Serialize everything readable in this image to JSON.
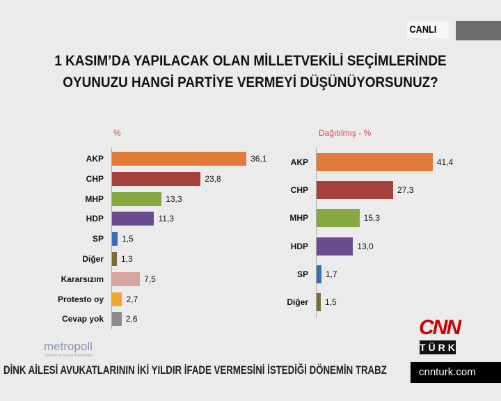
{
  "live_label": "CANLI",
  "title_lines": [
    "1 KASIM’DA YAPILACAK OLAN MİLLETVEKİLİ SEÇİMLERİNDE",
    "OYUNUZU HANGİ PARTİYE VERMEYİ DÜŞÜNÜYORSUNUZ?"
  ],
  "chart_data": [
    {
      "type": "bar",
      "orientation": "horizontal",
      "subtitle": "%",
      "categories": [
        "AKP",
        "CHP",
        "MHP",
        "HDP",
        "SP",
        "Diğer",
        "Kararsızım",
        "Protesto oy",
        "Cevap yok"
      ],
      "values": [
        36.1,
        23.8,
        13.3,
        11.3,
        1.5,
        1.3,
        7.5,
        2.7,
        2.6
      ],
      "labels": [
        "36,1",
        "23,8",
        "13,3",
        "11,3",
        "1,5",
        "1,3",
        "7,5",
        "2,7",
        "2,6"
      ],
      "colors": [
        "#e07b39",
        "#a5403a",
        "#86a843",
        "#6a4c8f",
        "#3b6db5",
        "#7d6a3a",
        "#d9a3a0",
        "#f0a830",
        "#8c8c8c"
      ]
    },
    {
      "type": "bar",
      "orientation": "horizontal",
      "subtitle": "Dağıtılmış - %",
      "categories": [
        "AKP",
        "CHP",
        "MHP",
        "HDP",
        "SP",
        "Diğer"
      ],
      "values": [
        41.4,
        27.3,
        15.3,
        13.0,
        1.7,
        1.5
      ],
      "labels": [
        "41,4",
        "27,3",
        "15,3",
        "13,0",
        "1,7",
        "1,5"
      ],
      "colors": [
        "#e07b39",
        "#a5403a",
        "#86a843",
        "#6a4c8f",
        "#3b6db5",
        "#7d6a3a"
      ]
    }
  ],
  "logo": {
    "pollster": "metropoll",
    "pollster_tagline": "Stratejik ve Sosyal Araştırmalar"
  },
  "channel": {
    "logo_top": "CNN",
    "logo_bottom": "TÜRK",
    "site": "cnnturk.com"
  },
  "ticker": "DİNK AİLESİ AVUKATLARININ İKİ YILDIR İFADE VERMESİNİ İSTEDİĞİ DÖNEMİN TRABZ"
}
